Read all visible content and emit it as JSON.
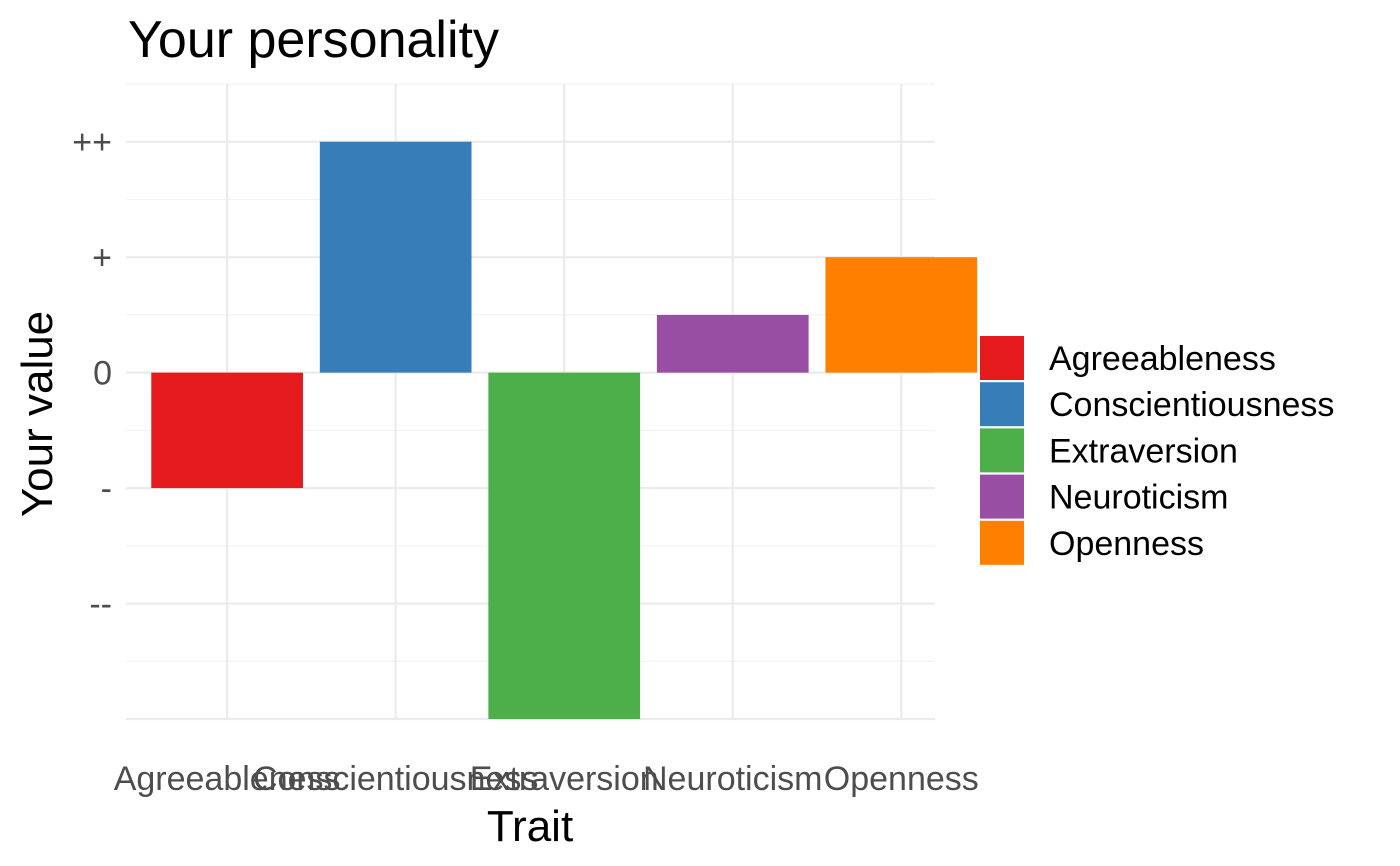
{
  "chart_data": {
    "type": "bar",
    "title": "Your personality",
    "xlabel": "Trait",
    "ylabel": "Your value",
    "categories": [
      "Agreeableness",
      "Conscientiousness",
      "Extraversion",
      "Neuroticism",
      "Openness"
    ],
    "values": [
      -1,
      2,
      -3,
      0.5,
      1
    ],
    "colors": [
      "#e41a1c",
      "#377eb8",
      "#4daf4a",
      "#984ea3",
      "#ff7f00"
    ],
    "ylim": [
      -3,
      2.5
    ],
    "yticks": [
      {
        "value": 2,
        "label": "++"
      },
      {
        "value": 1,
        "label": "+"
      },
      {
        "value": 0,
        "label": "0"
      },
      {
        "value": -1,
        "label": "-"
      },
      {
        "value": -2,
        "label": "--"
      }
    ],
    "legend": {
      "position": "right",
      "entries": [
        "Agreeableness",
        "Conscientiousness",
        "Extraversion",
        "Neuroticism",
        "Openness"
      ]
    },
    "grid": true
  }
}
